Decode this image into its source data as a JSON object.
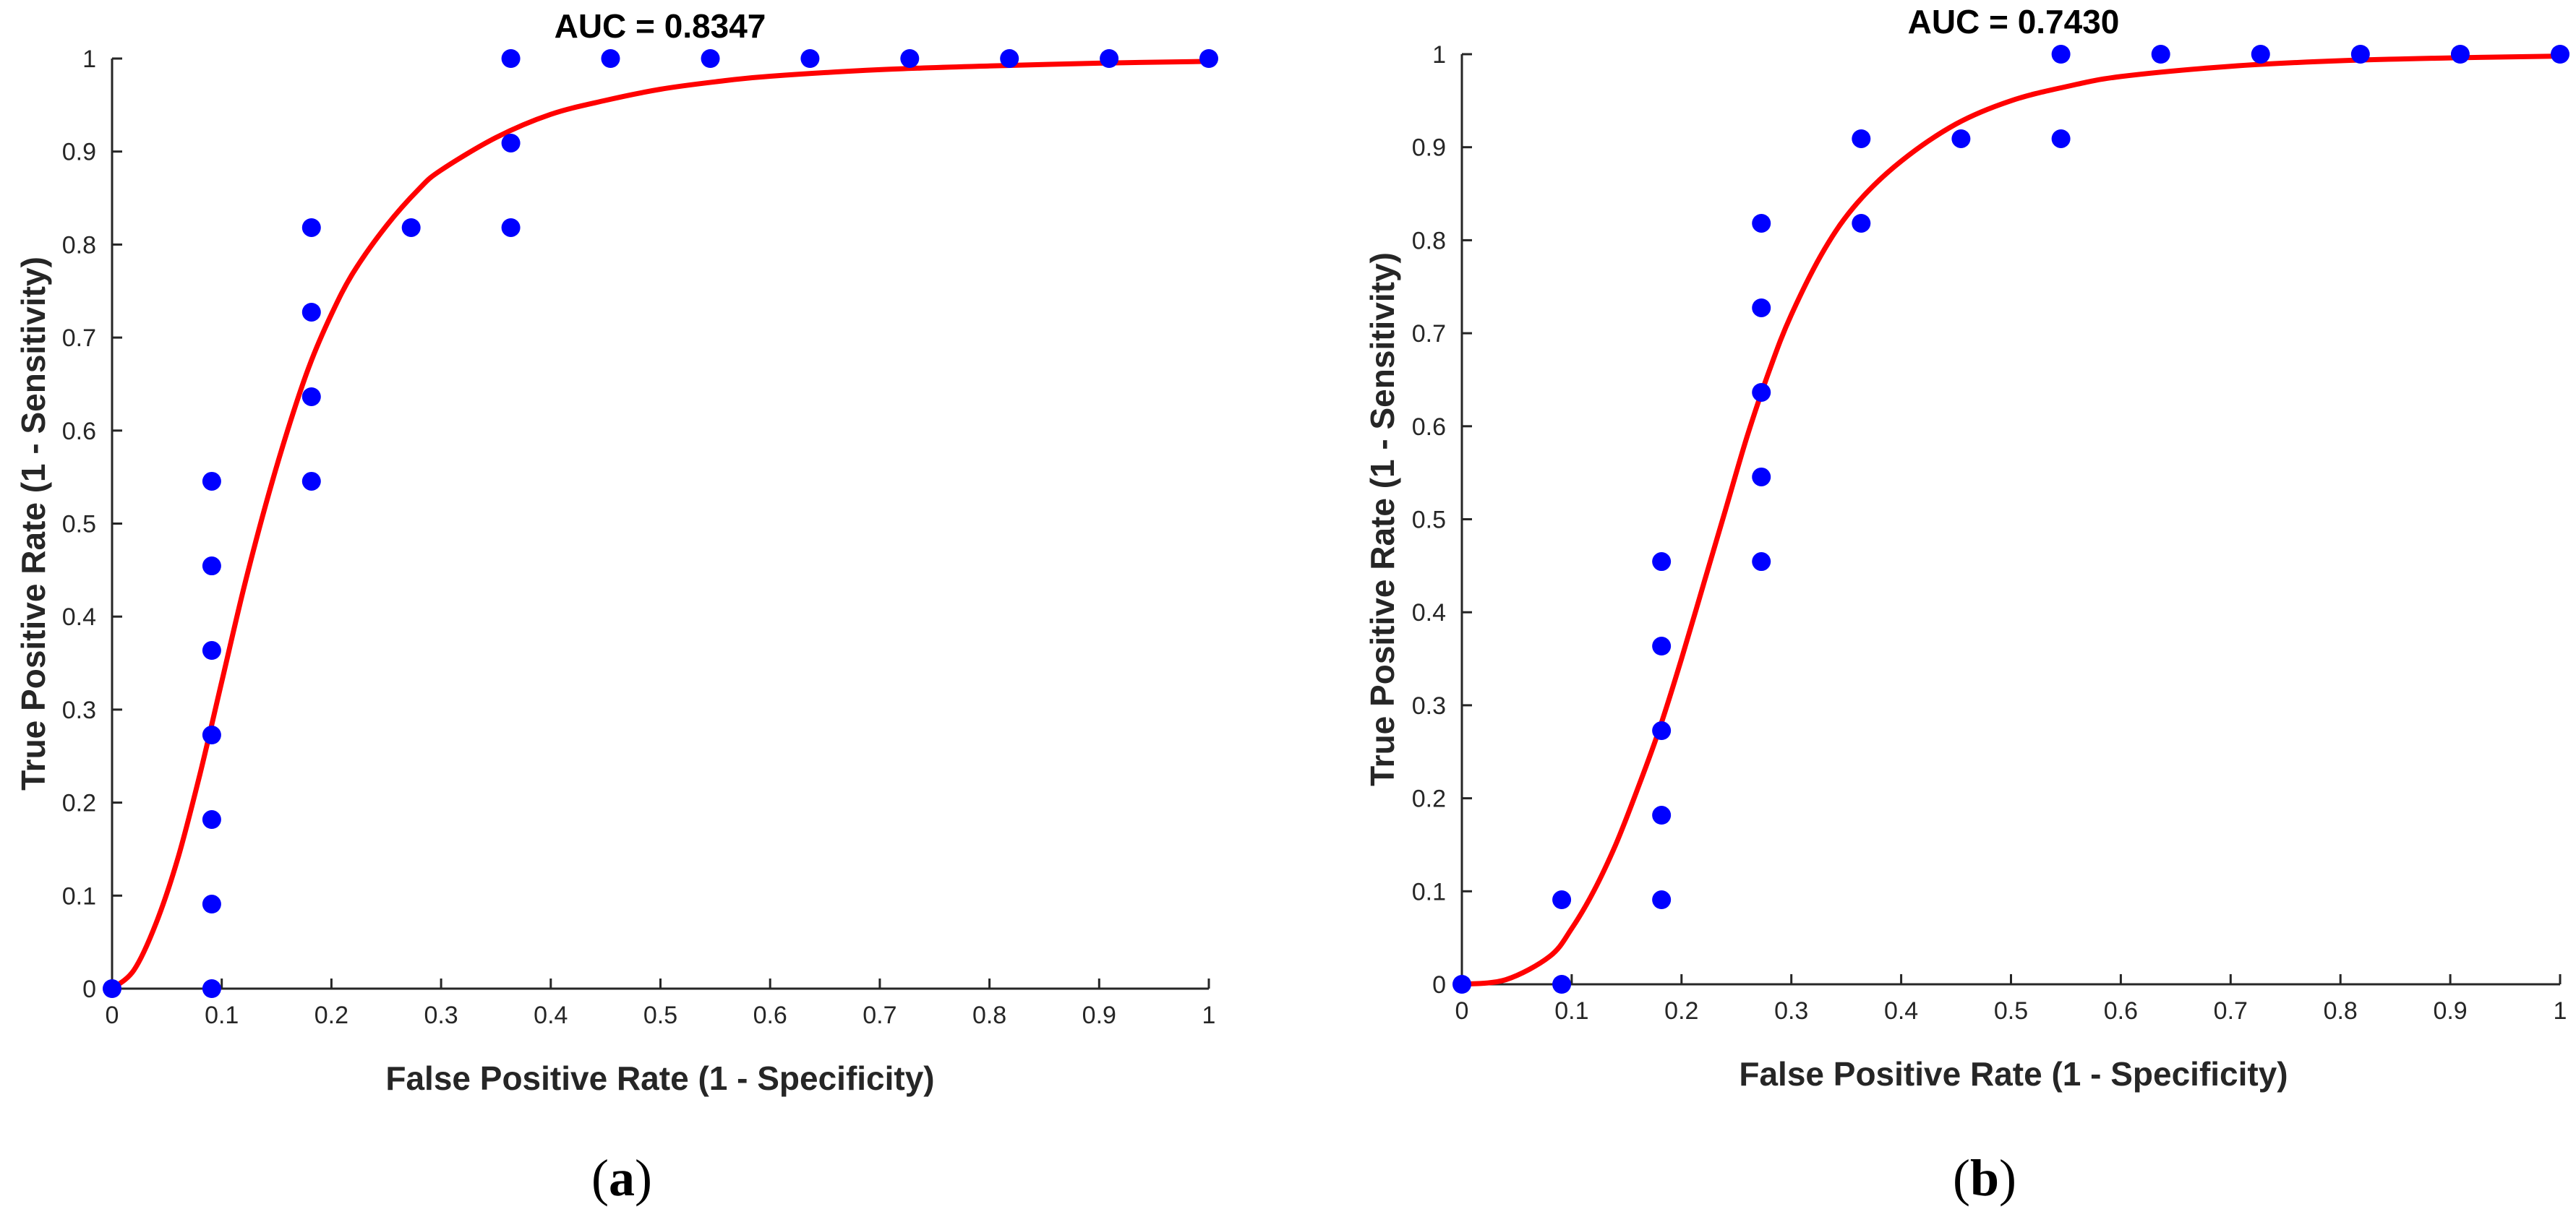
{
  "colors": {
    "curve": "#ff0000",
    "points": "#0000ff",
    "axis": "#262626"
  },
  "chart_data": [
    {
      "type": "scatter",
      "panel": "a",
      "caption": {
        "open": "(",
        "letter": "a",
        "close": ")"
      },
      "title": "AUC = 0.8347",
      "xlabel": "False Positive Rate (1 - Specificity)",
      "ylabel": "True Positive Rate (1 - Sensitivity)",
      "xlim": [
        0,
        1
      ],
      "ylim": [
        0,
        1
      ],
      "xticks": [
        "0",
        "0.1",
        "0.2",
        "0.3",
        "0.4",
        "0.5",
        "0.6",
        "0.7",
        "0.8",
        "0.9",
        "1"
      ],
      "yticks": [
        "0",
        "0.1",
        "0.2",
        "0.3",
        "0.4",
        "0.5",
        "0.6",
        "0.7",
        "0.8",
        "0.9",
        "1"
      ],
      "grid": false,
      "points": {
        "name": "Observed",
        "x": [
          0,
          0.0909,
          0.0909,
          0.0909,
          0.0909,
          0.0909,
          0.0909,
          0.0909,
          0.1818,
          0.1818,
          0.1818,
          0.1818,
          0.2727,
          0.3636,
          0.3636,
          0.3636,
          0.4545,
          0.5455,
          0.6364,
          0.7273,
          0.8182,
          0.9091,
          1.0
        ],
        "y": [
          0,
          0,
          0.0909,
          0.1818,
          0.2727,
          0.3636,
          0.4545,
          0.5455,
          0.5455,
          0.6364,
          0.7273,
          0.8182,
          0.8182,
          0.8182,
          0.9091,
          1.0,
          1.0,
          1.0,
          1.0,
          1.0,
          1.0,
          1.0,
          1.0
        ]
      },
      "curve": {
        "name": "Fitted ROC",
        "x": [
          0,
          0.02,
          0.04,
          0.06,
          0.08,
          0.1,
          0.12,
          0.14,
          0.16,
          0.18,
          0.2,
          0.22,
          0.25,
          0.28,
          0.3,
          0.35,
          0.4,
          0.45,
          0.5,
          0.55,
          0.6,
          0.7,
          0.8,
          0.9,
          1.0
        ],
        "y": [
          0,
          0.02,
          0.07,
          0.14,
          0.23,
          0.33,
          0.43,
          0.52,
          0.6,
          0.67,
          0.725,
          0.77,
          0.82,
          0.86,
          0.88,
          0.915,
          0.94,
          0.955,
          0.967,
          0.975,
          0.981,
          0.988,
          0.992,
          0.995,
          0.997
        ]
      }
    },
    {
      "type": "scatter",
      "panel": "b",
      "caption": {
        "open": "(",
        "letter": "b",
        "close": ")"
      },
      "title": "AUC = 0.7430",
      "xlabel": "False Positive Rate (1 - Specificity)",
      "ylabel": "True Positive Rate (1 - Sensitivity)",
      "xlim": [
        0,
        1
      ],
      "ylim": [
        0,
        1
      ],
      "xticks": [
        "0",
        "0.1",
        "0.2",
        "0.3",
        "0.4",
        "0.5",
        "0.6",
        "0.7",
        "0.8",
        "0.9",
        "1"
      ],
      "yticks": [
        "0",
        "0.1",
        "0.2",
        "0.3",
        "0.4",
        "0.5",
        "0.6",
        "0.7",
        "0.8",
        "0.9",
        "1"
      ],
      "grid": false,
      "points": {
        "name": "Observed",
        "x": [
          0,
          0.0909,
          0.0909,
          0.1818,
          0.1818,
          0.1818,
          0.1818,
          0.1818,
          0.2727,
          0.2727,
          0.2727,
          0.2727,
          0.2727,
          0.3636,
          0.3636,
          0.4545,
          0.5455,
          0.5455,
          0.6364,
          0.7273,
          0.8182,
          0.9091,
          1.0
        ],
        "y": [
          0,
          0,
          0.0909,
          0.0909,
          0.1818,
          0.2727,
          0.3636,
          0.4545,
          0.4545,
          0.5455,
          0.6364,
          0.7273,
          0.8182,
          0.8182,
          0.9091,
          0.9091,
          0.9091,
          1.0,
          1.0,
          1.0,
          1.0,
          1.0,
          1.0
        ]
      },
      "curve": {
        "name": "Fitted ROC",
        "x": [
          0,
          0.04,
          0.08,
          0.1,
          0.12,
          0.14,
          0.16,
          0.18,
          0.2,
          0.22,
          0.24,
          0.26,
          0.28,
          0.3,
          0.33,
          0.36,
          0.4,
          0.45,
          0.5,
          0.55,
          0.6,
          0.7,
          0.8,
          0.9,
          1.0
        ],
        "y": [
          0,
          0.005,
          0.03,
          0.06,
          0.1,
          0.15,
          0.21,
          0.275,
          0.35,
          0.43,
          0.51,
          0.59,
          0.66,
          0.72,
          0.79,
          0.84,
          0.885,
          0.925,
          0.95,
          0.965,
          0.976,
          0.987,
          0.993,
          0.996,
          0.998
        ]
      }
    }
  ]
}
